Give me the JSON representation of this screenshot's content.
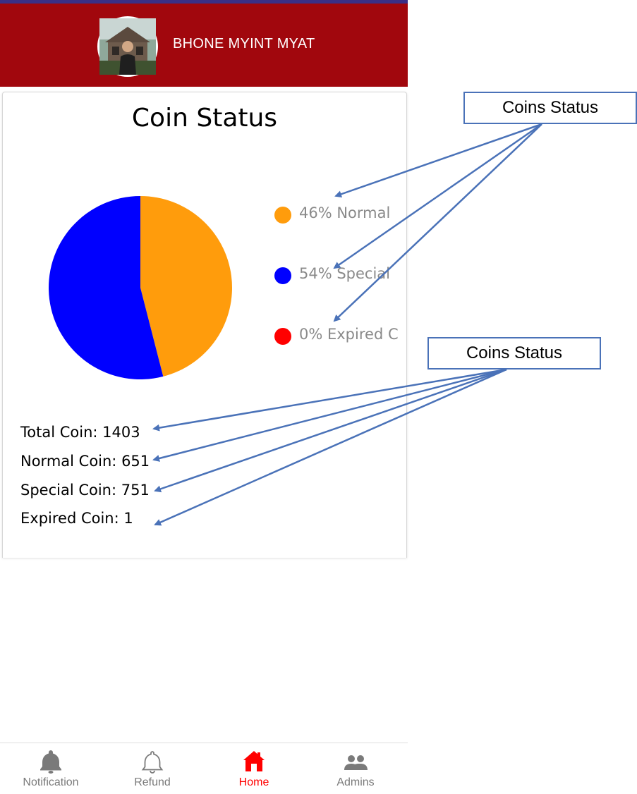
{
  "header": {
    "user_name": "BHONE MYINT MYAT",
    "avatar": "avatar-photo"
  },
  "card": {
    "title": "Coin Status"
  },
  "chart_data": {
    "type": "pie",
    "categories": [
      "46% Normal",
      "54% Special",
      "0% Expired C"
    ],
    "values": [
      46,
      54,
      0
    ],
    "colors": [
      "#ff9c0c",
      "#0000ff",
      "#ff0000"
    ],
    "legend_position": "right"
  },
  "legend": [
    {
      "label": "46% Normal",
      "color": "#ff9c0c"
    },
    {
      "label": "54% Special",
      "color": "#0000ff"
    },
    {
      "label": "0% Expired C",
      "color": "#ff0000"
    }
  ],
  "summary": {
    "total": "Total Coin: 1403",
    "normal": "Normal Coin: 651",
    "special": "Special Coin: 751",
    "expired": "Expired Coin: 1"
  },
  "nav": [
    {
      "label": "Notification",
      "icon": "bell-filled-icon",
      "color": "#7a7a7a"
    },
    {
      "label": "Refund",
      "icon": "bell-outline-icon",
      "color": "#7a7a7a"
    },
    {
      "label": "Home",
      "icon": "home-icon",
      "color": "#ff0000"
    },
    {
      "label": "Admins",
      "icon": "people-icon",
      "color": "#7a7a7a"
    }
  ],
  "annotations": {
    "callout_top": "Coins Status",
    "callout_bottom": "Coins Status",
    "arrow_color": "#4a72b8"
  }
}
